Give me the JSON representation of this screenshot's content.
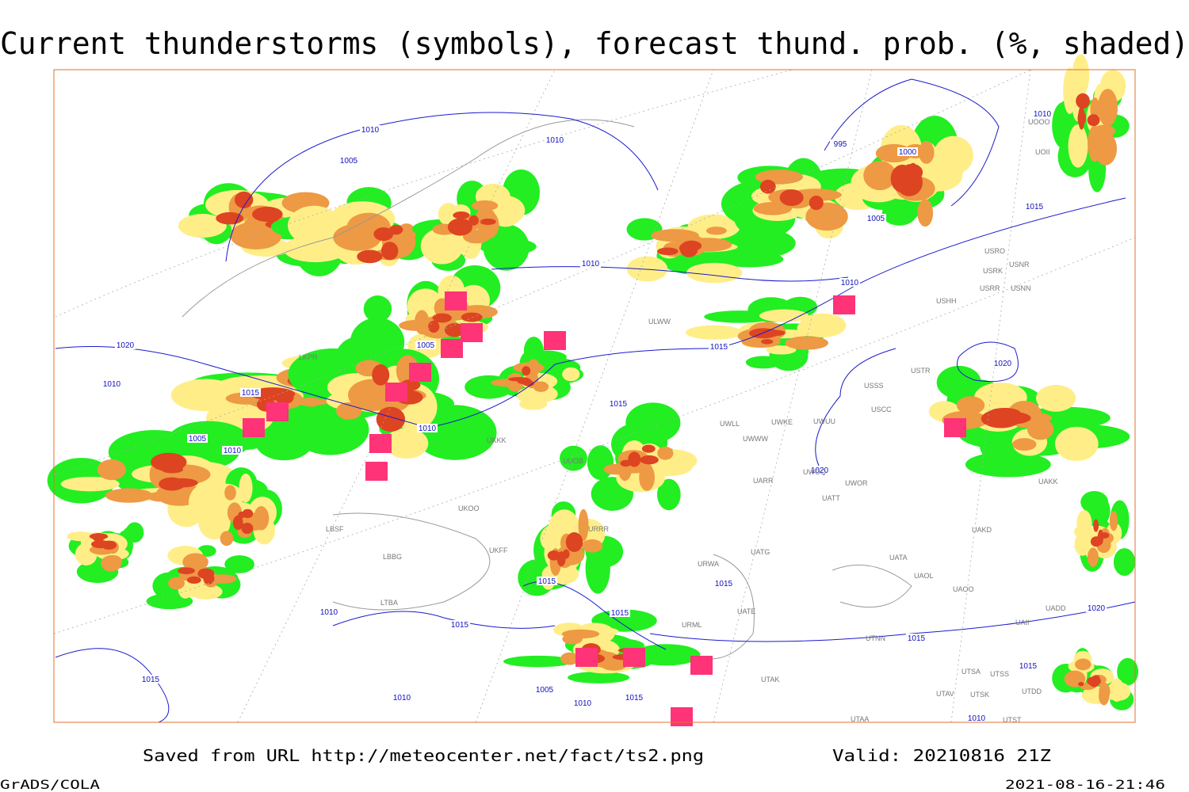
{
  "header": {
    "title": "Current thunderstorms (symbols), forecast thund. prob. (%, shaded)"
  },
  "isobar_labels": [
    "1010",
    "1010",
    "1005",
    "995",
    "1000",
    "1010",
    "1005",
    "1015",
    "1010",
    "1010",
    "1020",
    "1005",
    "1015",
    "1020",
    "1010",
    "1015",
    "1015",
    "1010",
    "1005",
    "1010",
    "1020",
    "1015",
    "1015",
    "1010",
    "1015",
    "1015",
    "1020",
    "1015",
    "1015",
    "1015",
    "1010",
    "1005",
    "1010",
    "1015",
    "1010"
  ],
  "stations": [
    "ULWW",
    "UUOB",
    "UKKK",
    "UKOO",
    "URRR",
    "UKFF",
    "URWA",
    "UATG",
    "UATA",
    "UAOL",
    "UAOO",
    "UAKD",
    "UATT",
    "UARR",
    "UWOO",
    "UWOR",
    "UWWW",
    "UWLL",
    "UWKE",
    "UWUU",
    "USCC",
    "USSS",
    "USTR",
    "USHH",
    "USRR",
    "USNN",
    "USRK",
    "USNR",
    "USRO",
    "UOOO",
    "UOII",
    "UAKK",
    "UATE",
    "URML",
    "UTAK",
    "UTNN",
    "UTSA",
    "UTSS",
    "UTAV",
    "UTSK",
    "UTAA",
    "UTST",
    "UTDD",
    "UAII",
    "UADD",
    "LBSF",
    "LBBG",
    "LTBA",
    "LKPR"
  ],
  "footer": {
    "source": "Saved from URL http://meteocenter.net/fact/ts2.png",
    "valid": "Valid: 20210816 21Z",
    "software": "GrADS/COLA",
    "timestamp": "2021-08-16-21:46"
  }
}
